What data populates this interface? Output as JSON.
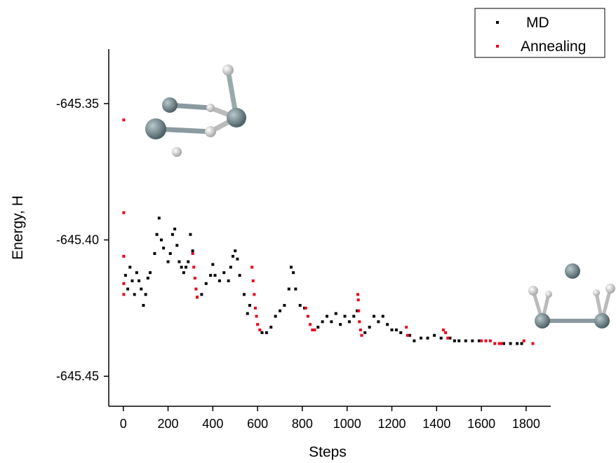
{
  "chart_data": {
    "type": "scatter",
    "x_label": "Steps",
    "y_label": "Energy, H",
    "xlim": [
      -65,
      1910
    ],
    "ylim": [
      -645.461,
      -645.33
    ],
    "xticks": [
      0,
      200,
      400,
      600,
      800,
      1000,
      1200,
      1400,
      1600,
      1800
    ],
    "yticks": [
      -645.35,
      {
        "value": -645.4,
        "label": "-645.40"
      },
      -645.45
    ],
    "legend": "top-right",
    "series": [
      {
        "name": "MD",
        "color": "#000000",
        "x": [
          10,
          20,
          30,
          40,
          50,
          60,
          70,
          80,
          90,
          100,
          110,
          120,
          140,
          150,
          160,
          170,
          180,
          200,
          210,
          220,
          230,
          240,
          250,
          260,
          270,
          280,
          290,
          300,
          310,
          330,
          350,
          370,
          390,
          400,
          410,
          430,
          450,
          470,
          480,
          490,
          500,
          510,
          520,
          540,
          555,
          565,
          620,
          640,
          660,
          680,
          700,
          720,
          740,
          750,
          760,
          770,
          790,
          810,
          870,
          890,
          910,
          930,
          950,
          970,
          990,
          1010,
          1030,
          1045,
          1080,
          1100,
          1120,
          1140,
          1160,
          1180,
          1200,
          1220,
          1240,
          1280,
          1300,
          1330,
          1360,
          1390,
          1420,
          1460,
          1480,
          1500,
          1530,
          1560,
          1590,
          1700,
          1730,
          1760,
          1780
        ],
        "values": [
          -645.413,
          -645.418,
          -645.41,
          -645.415,
          -645.42,
          -645.412,
          -645.415,
          -645.418,
          -645.424,
          -645.42,
          -645.414,
          -645.412,
          -645.405,
          -645.398,
          -645.392,
          -645.4,
          -645.403,
          -645.408,
          -645.405,
          -645.398,
          -645.396,
          -645.402,
          -645.408,
          -645.41,
          -645.412,
          -645.41,
          -645.408,
          -645.398,
          -645.404,
          -645.421,
          -645.42,
          -645.416,
          -645.413,
          -645.409,
          -645.413,
          -645.415,
          -645.412,
          -645.415,
          -645.41,
          -645.406,
          -645.404,
          -645.407,
          -645.413,
          -645.42,
          -645.427,
          -645.424,
          -645.434,
          -645.434,
          -645.432,
          -645.428,
          -645.426,
          -645.424,
          -645.418,
          -645.41,
          -645.412,
          -645.418,
          -645.424,
          -645.425,
          -645.432,
          -645.43,
          -645.428,
          -645.43,
          -645.427,
          -645.431,
          -645.428,
          -645.43,
          -645.428,
          -645.426,
          -645.434,
          -645.432,
          -645.428,
          -645.43,
          -645.428,
          -645.431,
          -645.433,
          -645.433,
          -645.434,
          -645.435,
          -645.437,
          -645.436,
          -645.436,
          -645.435,
          -645.436,
          -645.436,
          -645.437,
          -645.437,
          -645.437,
          -645.437,
          -645.437,
          -645.438,
          -645.438,
          -645.438,
          -645.438
        ]
      },
      {
        "name": "Annealing",
        "color": "#e8001c",
        "x": [
          2,
          2,
          2,
          2,
          2,
          310,
          315,
          320,
          325,
          330,
          575,
          580,
          585,
          590,
          595,
          600,
          610,
          815,
          825,
          835,
          845,
          855,
          1048,
          1050,
          1052,
          1055,
          1060,
          1065,
          1265,
          1270,
          1430,
          1440,
          1450,
          1600,
          1620,
          1640,
          1660,
          1680,
          1690,
          1790,
          1830
        ],
        "values": [
          -645.356,
          -645.39,
          -645.406,
          -645.416,
          -645.42,
          -645.405,
          -645.41,
          -645.414,
          -645.418,
          -645.421,
          -645.41,
          -645.415,
          -645.42,
          -645.425,
          -645.428,
          -645.431,
          -645.433,
          -645.425,
          -645.428,
          -645.431,
          -645.433,
          -645.433,
          -645.42,
          -645.422,
          -645.426,
          -645.43,
          -645.433,
          -645.435,
          -645.432,
          -645.435,
          -645.433,
          -645.434,
          -645.436,
          -645.437,
          -645.437,
          -645.437,
          -645.438,
          -645.438,
          -645.438,
          -645.437,
          -645.438
        ]
      }
    ]
  }
}
